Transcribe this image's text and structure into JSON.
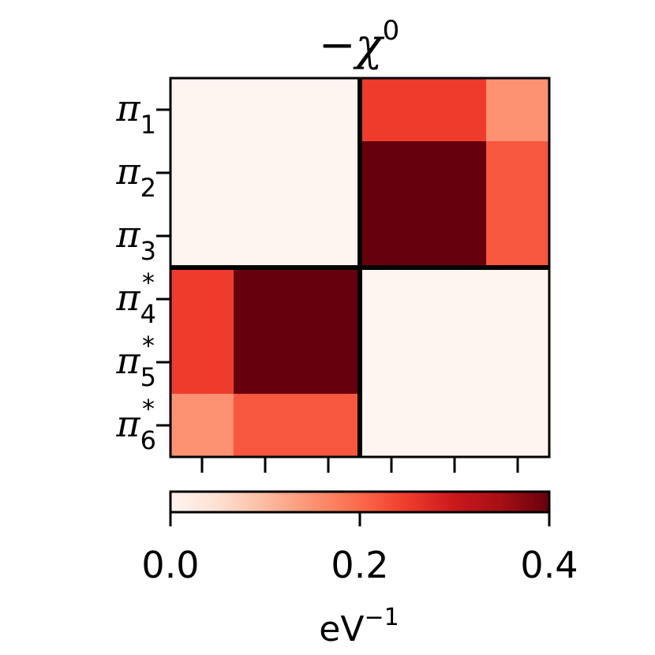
{
  "chart_data": {
    "type": "heatmap",
    "title": "−χ",
    "title_superscript": "0",
    "row_labels": [
      {
        "base": "π",
        "sub": "1",
        "sup": ""
      },
      {
        "base": "π",
        "sub": "2",
        "sup": ""
      },
      {
        "base": "π",
        "sub": "3",
        "sup": ""
      },
      {
        "base": "π",
        "sub": "4",
        "sup": "*"
      },
      {
        "base": "π",
        "sub": "5",
        "sup": "*"
      },
      {
        "base": "π",
        "sub": "6",
        "sup": "*"
      }
    ],
    "x_tick_labels": [
      "",
      "",
      "",
      "",
      "",
      ""
    ],
    "values": [
      [
        0.0,
        0.0,
        0.0,
        0.25,
        0.25,
        0.15
      ],
      [
        0.0,
        0.0,
        0.0,
        0.4,
        0.4,
        0.22
      ],
      [
        0.0,
        0.0,
        0.0,
        0.4,
        0.4,
        0.22
      ],
      [
        0.25,
        0.4,
        0.4,
        0.0,
        0.0,
        0.0
      ],
      [
        0.25,
        0.4,
        0.4,
        0.0,
        0.0,
        0.0
      ],
      [
        0.15,
        0.22,
        0.22,
        0.0,
        0.0,
        0.0
      ]
    ],
    "block_divider_after": 3,
    "colormap": "Reds",
    "colormap_stops": [
      "#fff5f0",
      "#fee0d2",
      "#fcbba1",
      "#fc9272",
      "#fb6a4a",
      "#ef3b2c",
      "#cb181d",
      "#a50f15",
      "#67000d"
    ],
    "vmin": 0.0,
    "vmax": 0.4,
    "colorbar": {
      "orientation": "horizontal",
      "placement": "bottom",
      "ticks": [
        0.0,
        0.2,
        0.4
      ],
      "tick_labels": [
        "0.0",
        "0.2",
        "0.4"
      ],
      "label_base": "eV",
      "label_sup": "−1"
    },
    "grid": false
  }
}
